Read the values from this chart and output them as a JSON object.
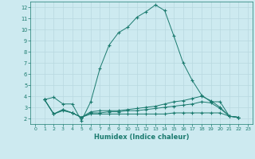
{
  "xlabel": "Humidex (Indice chaleur)",
  "bg_color": "#cdeaf0",
  "grid_color": "#b8d8e0",
  "line_color": "#1a7a6e",
  "xlim": [
    -0.5,
    23.5
  ],
  "ylim": [
    1.5,
    12.5
  ],
  "xticks": [
    0,
    1,
    2,
    3,
    4,
    5,
    6,
    7,
    8,
    9,
    10,
    11,
    12,
    13,
    14,
    15,
    16,
    17,
    18,
    19,
    20,
    21,
    22,
    23
  ],
  "yticks": [
    2,
    3,
    4,
    5,
    6,
    7,
    8,
    9,
    10,
    11,
    12
  ],
  "curves": [
    {
      "x": [
        1,
        2,
        3,
        4,
        5,
        6,
        7,
        8,
        9,
        10,
        11,
        12,
        13,
        14,
        15,
        16,
        17,
        18,
        19,
        20,
        21,
        22
      ],
      "y": [
        3.7,
        3.9,
        3.3,
        3.3,
        1.8,
        3.5,
        6.5,
        8.6,
        9.7,
        10.2,
        11.1,
        11.6,
        12.2,
        11.7,
        9.4,
        7.0,
        5.4,
        4.1,
        3.5,
        3.5,
        2.2,
        2.1
      ]
    },
    {
      "x": [
        1,
        2,
        3,
        4,
        5,
        6,
        7,
        8,
        9,
        10,
        11,
        12,
        13,
        14,
        15,
        16,
        17,
        18,
        19,
        20,
        21,
        22
      ],
      "y": [
        3.7,
        2.4,
        2.8,
        2.5,
        2.1,
        2.6,
        2.7,
        2.7,
        2.7,
        2.8,
        2.9,
        3.0,
        3.1,
        3.3,
        3.5,
        3.6,
        3.8,
        4.0,
        3.6,
        3.0,
        2.2,
        2.1
      ]
    },
    {
      "x": [
        1,
        2,
        3,
        4,
        5,
        6,
        7,
        8,
        9,
        10,
        11,
        12,
        13,
        14,
        15,
        16,
        17,
        18,
        19,
        20,
        21,
        22
      ],
      "y": [
        3.7,
        2.4,
        2.8,
        2.5,
        2.1,
        2.5,
        2.5,
        2.6,
        2.6,
        2.7,
        2.7,
        2.8,
        2.9,
        3.0,
        3.1,
        3.2,
        3.3,
        3.5,
        3.4,
        2.9,
        2.2,
        2.1
      ]
    },
    {
      "x": [
        1,
        2,
        3,
        4,
        5,
        6,
        7,
        8,
        9,
        10,
        11,
        12,
        13,
        14,
        15,
        16,
        17,
        18,
        19,
        20,
        21,
        22
      ],
      "y": [
        3.7,
        2.4,
        2.7,
        2.5,
        2.1,
        2.4,
        2.4,
        2.4,
        2.4,
        2.4,
        2.4,
        2.4,
        2.4,
        2.4,
        2.5,
        2.5,
        2.5,
        2.5,
        2.5,
        2.5,
        2.2,
        2.1
      ]
    }
  ]
}
